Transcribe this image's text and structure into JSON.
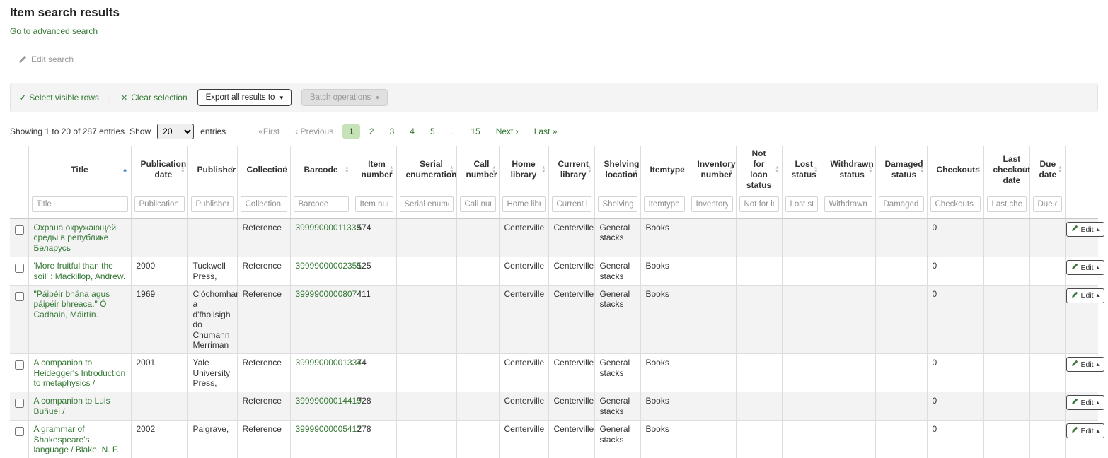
{
  "page": {
    "title": "Item search results",
    "advanced_search": "Go to advanced search",
    "edit_search": "Edit search"
  },
  "toolbar": {
    "select_icon": "✔",
    "select_label": "Select visible rows",
    "separator": "|",
    "clear_icon": "✕",
    "clear_label": "Clear selection",
    "export_label": "Export all results to",
    "batch_label": "Batch operations",
    "caret": "▾"
  },
  "pagination": {
    "info": "Showing 1 to 20 of 287 entries",
    "show_label": "Show",
    "page_size": "20",
    "entries_label": "entries",
    "pager": [
      {
        "name": "first",
        "label": "«First",
        "state": "disabled"
      },
      {
        "name": "previous",
        "label": "‹ Previous",
        "state": "disabled"
      },
      {
        "name": "page-1",
        "label": "1",
        "state": "active"
      },
      {
        "name": "page-2",
        "label": "2"
      },
      {
        "name": "page-3",
        "label": "3"
      },
      {
        "name": "page-4",
        "label": "4"
      },
      {
        "name": "page-5",
        "label": "5"
      },
      {
        "name": "ellipsis",
        "label": "..",
        "state": "disabled"
      },
      {
        "name": "page-15",
        "label": "15"
      },
      {
        "name": "next",
        "label": "Next ›"
      },
      {
        "name": "last",
        "label": "Last »"
      }
    ]
  },
  "table": {
    "edit_label": "Edit",
    "edit_caret": "▴",
    "columns": [
      {
        "key": "title",
        "label": "Title",
        "sort": "asc",
        "link": true
      },
      {
        "key": "publication_date",
        "label": "Publication date"
      },
      {
        "key": "publisher",
        "label": "Publisher"
      },
      {
        "key": "collection",
        "label": "Collection"
      },
      {
        "key": "barcode",
        "label": "Barcode",
        "link": true,
        "nowrap": true
      },
      {
        "key": "item_number",
        "label": "Item number"
      },
      {
        "key": "serial_enumeration",
        "label": "Serial enumeration"
      },
      {
        "key": "call_number",
        "label": "Call number"
      },
      {
        "key": "home_library",
        "label": "Home library"
      },
      {
        "key": "current_library",
        "label": "Current library"
      },
      {
        "key": "shelving_location",
        "label": "Shelving location"
      },
      {
        "key": "itemtype",
        "label": "Itemtype"
      },
      {
        "key": "inventory_number",
        "label": "Inventory number"
      },
      {
        "key": "not_for_loan_status",
        "label": "Not for loan status"
      },
      {
        "key": "lost_status",
        "label": "Lost status"
      },
      {
        "key": "withdrawn_status",
        "label": "Withdrawn status"
      },
      {
        "key": "damaged_status",
        "label": "Damaged status"
      },
      {
        "key": "checkouts",
        "label": "Checkouts"
      },
      {
        "key": "last_checkout_date",
        "label": "Last checkout date"
      },
      {
        "key": "due_date",
        "label": "Due date"
      }
    ],
    "rows": [
      {
        "title": "Охрана окружающей среды в републике Беларусь",
        "publication_date": "",
        "publisher": "",
        "collection": "Reference",
        "barcode": "39999000011333",
        "item_number": "574",
        "serial_enumeration": "",
        "call_number": "",
        "home_library": "Centerville",
        "current_library": "Centerville",
        "shelving_location": "General stacks",
        "itemtype": "Books",
        "inventory_number": "",
        "not_for_loan_status": "",
        "lost_status": "",
        "withdrawn_status": "",
        "damaged_status": "",
        "checkouts": "0",
        "last_checkout_date": "",
        "due_date": ""
      },
      {
        "title": "'More fruitful than the soil' : Mackillop, Andrew.",
        "publication_date": "2000",
        "publisher": "Tuckwell Press,",
        "collection": "Reference",
        "barcode": "39999000002355",
        "item_number": "125",
        "serial_enumeration": "",
        "call_number": "",
        "home_library": "Centerville",
        "current_library": "Centerville",
        "shelving_location": "General stacks",
        "itemtype": "Books",
        "inventory_number": "",
        "not_for_loan_status": "",
        "lost_status": "",
        "withdrawn_status": "",
        "damaged_status": "",
        "checkouts": "0",
        "last_checkout_date": "",
        "due_date": ""
      },
      {
        "title": "\"Páipéir bhána agus páipéir bhreaca.\" Ó Cadhain, Máirtín.",
        "publication_date": "1969",
        "publisher": "Clóchomhar a d'fhoilsigh do Chumann Merriman",
        "collection": "Reference",
        "barcode": "39999000008074",
        "item_number": "411",
        "serial_enumeration": "",
        "call_number": "",
        "home_library": "Centerville",
        "current_library": "Centerville",
        "shelving_location": "General stacks",
        "itemtype": "Books",
        "inventory_number": "",
        "not_for_loan_status": "",
        "lost_status": "",
        "withdrawn_status": "",
        "damaged_status": "",
        "checkouts": "0",
        "last_checkout_date": "",
        "due_date": ""
      },
      {
        "title": "A companion to Heidegger's Introduction to metaphysics /",
        "publication_date": "2001",
        "publisher": "Yale University Press,",
        "collection": "Reference",
        "barcode": "39999000001334",
        "item_number": "74",
        "serial_enumeration": "",
        "call_number": "",
        "home_library": "Centerville",
        "current_library": "Centerville",
        "shelving_location": "General stacks",
        "itemtype": "Books",
        "inventory_number": "",
        "not_for_loan_status": "",
        "lost_status": "",
        "withdrawn_status": "",
        "damaged_status": "",
        "checkouts": "0",
        "last_checkout_date": "",
        "due_date": ""
      },
      {
        "title": "A companion to Luis Buñuel /",
        "publication_date": "",
        "publisher": "",
        "collection": "Reference",
        "barcode": "39999000014419",
        "item_number": "728",
        "serial_enumeration": "",
        "call_number": "",
        "home_library": "Centerville",
        "current_library": "Centerville",
        "shelving_location": "General stacks",
        "itemtype": "Books",
        "inventory_number": "",
        "not_for_loan_status": "",
        "lost_status": "",
        "withdrawn_status": "",
        "damaged_status": "",
        "checkouts": "0",
        "last_checkout_date": "",
        "due_date": ""
      },
      {
        "title": "A grammar of Shakespeare's language / Blake, N. F.",
        "publication_date": "2002",
        "publisher": "Palgrave,",
        "collection": "Reference",
        "barcode": "39999000005417",
        "item_number": "278",
        "serial_enumeration": "",
        "call_number": "",
        "home_library": "Centerville",
        "current_library": "Centerville",
        "shelving_location": "General stacks",
        "itemtype": "Books",
        "inventory_number": "",
        "not_for_loan_status": "",
        "lost_status": "",
        "withdrawn_status": "",
        "damaged_status": "",
        "checkouts": "0",
        "last_checkout_date": "",
        "due_date": ""
      }
    ]
  },
  "icons": {
    "edit_search": "pencil-icon",
    "select_rows": "check-icon",
    "clear_selection": "x-icon",
    "export_dropdown": "caret-down-icon",
    "batch_dropdown": "caret-down-icon",
    "edit_row": "pencil-icon",
    "edit_row_dropdown": "caret-up-icon",
    "sorted_column": "caret-up-icon",
    "sortable_column": "caret-up-down-icon"
  },
  "colors": {
    "link_green": "#347834",
    "page_active_bg": "#c6e3b8",
    "page_active_text": "#2b572b",
    "toolbar_bg": "#f4f4f4",
    "stripe_bg": "#f3f3f3",
    "border": "#dddddd",
    "sort_active": "#337ab7",
    "disabled_text": "#9a9a9a"
  }
}
